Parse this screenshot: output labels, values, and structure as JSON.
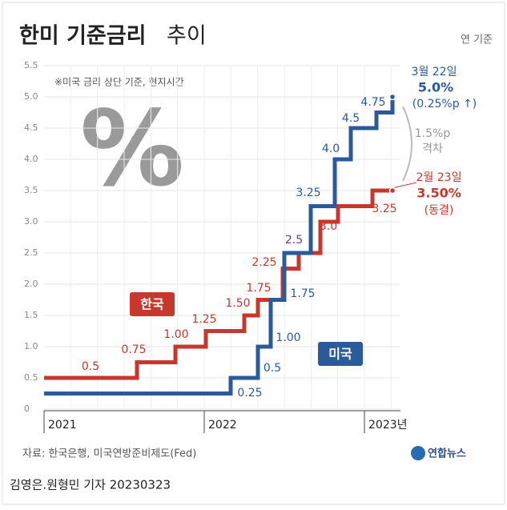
{
  "chart_data": {
    "type": "step",
    "title": "한미 기준금리",
    "title_2": "추이",
    "unit": "연 기준",
    "note": "※미국 금리 상단 기준, 현지시간",
    "symbol": "%",
    "ylim": [
      0,
      5.5
    ],
    "yticks": [
      0,
      0.5,
      {
        "value": 1,
        "label": "1.0"
      },
      1.5,
      {
        "value": 2,
        "label": "2.0"
      },
      2.5,
      {
        "value": 3,
        "label": "3.0"
      },
      3.5,
      {
        "value": 4,
        "label": "4.0"
      },
      4.5,
      {
        "value": 5,
        "label": "5.0"
      },
      5.5
    ],
    "xlim": [
      2021,
      2023.225
    ],
    "xticks": [
      2021,
      2022,
      {
        "value": 2023,
        "label": "2023년"
      }
    ],
    "grid": true,
    "series": [
      {
        "name": "한국",
        "color": "#c8372d",
        "x": [
          2021,
          2021.58,
          2021.82,
          2022.01,
          2022.25,
          2022.335,
          2022.49,
          2022.59,
          2022.725,
          2022.835,
          2023.05,
          2023.175
        ],
        "values": [
          0.5,
          0.75,
          1.0,
          1.25,
          1.5,
          1.75,
          2.25,
          2.5,
          3.0,
          3.25,
          3.5,
          3.5
        ],
        "value_labels": [
          "0.5",
          "0.75",
          "1.00",
          "1.25",
          "1.50",
          "1.75",
          "2.25",
          null,
          "3.0",
          "3.25",
          null,
          null
        ]
      },
      {
        "name": "미국",
        "color": "#2b5a9a",
        "x": [
          2021,
          2022.165,
          2022.335,
          2022.415,
          2022.5,
          2022.665,
          2022.815,
          2022.915,
          2023.075,
          2023.175
        ],
        "values": [
          0.25,
          0.5,
          1.0,
          1.75,
          2.5,
          3.25,
          4.0,
          4.5,
          4.75,
          5.0
        ],
        "value_labels": [
          "0.25",
          "0.5",
          "1.00",
          "1.75",
          "2.5",
          "3.25",
          "4.0",
          "4.5",
          "4.75",
          null
        ]
      }
    ],
    "annotations": {
      "us_date": "3월 22일",
      "us_rate": "5.0%",
      "us_change": "(0.25%p ↑)",
      "gap": "1.5%p",
      "gap_label": "격차",
      "kr_date": "2월 23일",
      "kr_rate": "3.50%",
      "kr_change": "(동결)"
    },
    "source": "자료: 한국은행, 미국연방준비제도(Fed)",
    "byline": "김영은.원형민 기자  20230323",
    "agency": "연합뉴스"
  }
}
